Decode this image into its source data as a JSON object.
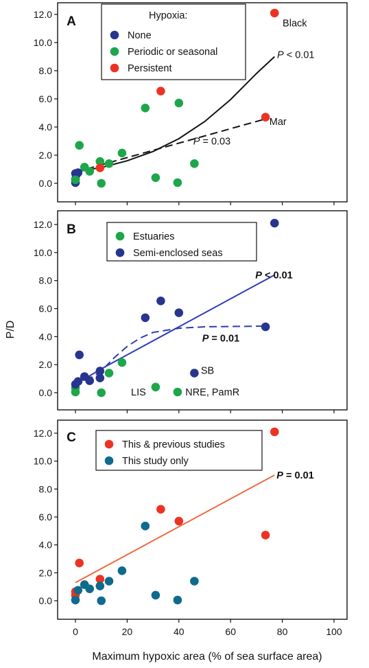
{
  "xlabel": "Maximum hypoxic area (% of sea surface area)",
  "ylabel": "P/D",
  "colors": {
    "blue": "#27358f",
    "green": "#1ea64a",
    "red": "#ec3323",
    "teal": "#0e6b8c",
    "orange": "#f06a43",
    "line_black": "#111111"
  },
  "chart_data": [
    {
      "type": "scatter",
      "panel": "A",
      "xlim": [
        0,
        100
      ],
      "ylim": [
        0,
        12
      ],
      "x_ticks": [
        "0",
        "20",
        "40",
        "60",
        "80",
        "100"
      ],
      "y_ticks": [
        "0.0",
        "2.0",
        "4.0",
        "6.0",
        "8.0",
        "10.0",
        "12.0"
      ],
      "legend_title": "Hypoxia:",
      "series": [
        {
          "name": "None",
          "color": "#27358f",
          "points": [
            [
              0,
              0.05
            ],
            [
              0,
              0.3
            ],
            [
              0.3,
              0.6
            ],
            [
              1,
              0.75
            ],
            [
              0,
              0.7
            ]
          ]
        },
        {
          "name": "Periodic or seasonal",
          "color": "#1ea64a",
          "points": [
            [
              1.5,
              2.7
            ],
            [
              3.5,
              1.15
            ],
            [
              5.5,
              0.85
            ],
            [
              9.5,
              1.55
            ],
            [
              10,
              0.0
            ],
            [
              13,
              1.4
            ],
            [
              18,
              2.15
            ],
            [
              27,
              5.35
            ],
            [
              31,
              0.4
            ],
            [
              39.5,
              0.05
            ],
            [
              40,
              5.7
            ],
            [
              46,
              1.4
            ],
            [
              0,
              0.25
            ]
          ]
        },
        {
          "name": "Persistent",
          "color": "#ec3323",
          "points": [
            [
              33,
              6.55
            ],
            [
              77,
              12.1
            ],
            [
              73.5,
              4.7
            ],
            [
              9.5,
              1.1
            ]
          ]
        }
      ],
      "fits": [
        {
          "style": "solid",
          "points": [
            [
              0,
              0.82
            ],
            [
              10,
              1.12
            ],
            [
              20,
              1.6
            ],
            [
              30,
              2.26
            ],
            [
              40,
              3.17
            ],
            [
              50,
              4.39
            ],
            [
              60,
              5.95
            ],
            [
              70,
              7.8
            ],
            [
              77,
              9.0
            ]
          ]
        },
        {
          "style": "dashed",
          "points": [
            [
              0,
              0.8
            ],
            [
              74,
              4.6
            ]
          ]
        }
      ],
      "annotations": [
        {
          "text": "Black",
          "x": 78,
          "y": 11.4
        },
        {
          "text": "P < 0.01",
          "x": 78,
          "y": 9.15
        },
        {
          "text": "Mar",
          "x": 75,
          "y": 4.4
        },
        {
          "text": "P = 0.03",
          "x": 60,
          "y": 3.0
        }
      ]
    },
    {
      "type": "scatter",
      "panel": "B",
      "xlim": [
        0,
        100
      ],
      "ylim": [
        0,
        12
      ],
      "x_ticks": [
        "0",
        "20",
        "40",
        "60",
        "80",
        "100"
      ],
      "y_ticks": [
        "0.0",
        "2.0",
        "4.0",
        "6.0",
        "8.0",
        "10.0",
        "12.0"
      ],
      "series": [
        {
          "name": "Estuaries",
          "color": "#1ea64a",
          "points": [
            [
              0,
              0.05
            ],
            [
              0,
              0.35
            ],
            [
              10,
              0.0
            ],
            [
              13,
              1.4
            ],
            [
              18,
              2.15
            ],
            [
              31,
              0.4
            ],
            [
              39.5,
              0.05
            ]
          ]
        },
        {
          "name": "Semi-enclosed seas",
          "color": "#27358f",
          "points": [
            [
              0,
              0.6
            ],
            [
              1,
              0.8
            ],
            [
              1.5,
              2.7
            ],
            [
              3.5,
              1.15
            ],
            [
              5.5,
              0.85
            ],
            [
              9.5,
              1.05
            ],
            [
              9.5,
              1.55
            ],
            [
              27,
              5.35
            ],
            [
              33,
              6.55
            ],
            [
              40,
              5.7
            ],
            [
              46,
              1.4
            ],
            [
              73.5,
              4.7
            ],
            [
              77,
              12.1
            ]
          ]
        }
      ],
      "fits": [
        {
          "style": "solid",
          "points": [
            [
              0,
              0.6
            ],
            [
              10,
              1.7
            ],
            [
              77,
              8.4
            ]
          ]
        },
        {
          "style": "dashed",
          "points": [
            [
              0,
              0.5
            ],
            [
              5,
              0.95
            ],
            [
              10,
              1.55
            ],
            [
              15,
              2.5
            ],
            [
              20,
              3.3
            ],
            [
              25,
              3.9
            ],
            [
              30,
              4.3
            ],
            [
              40,
              4.6
            ],
            [
              50,
              4.7
            ],
            [
              74,
              4.75
            ]
          ]
        }
      ],
      "annotations": [
        {
          "text": "P < 0.01",
          "x": 77,
          "y": 8.4
        },
        {
          "text": "P = 0.01",
          "x": 49,
          "y": 3.9
        },
        {
          "text": "SB",
          "x": 48.5,
          "y": 1.6
        },
        {
          "text": "LIS",
          "x": 21.5,
          "y": 0.05
        },
        {
          "text": "NRE, PamR",
          "x": 42.5,
          "y": 0.05
        }
      ]
    },
    {
      "type": "scatter",
      "panel": "C",
      "xlim": [
        0,
        100
      ],
      "ylim": [
        0,
        12
      ],
      "x_ticks": [
        "0",
        "20",
        "40",
        "60",
        "80",
        "100"
      ],
      "y_ticks": [
        "0.0",
        "2.0",
        "4.0",
        "6.0",
        "8.0",
        "10.0",
        "12.0"
      ],
      "series": [
        {
          "name": "This & previous studies",
          "color": "#ec3323",
          "points": [
            [
              0,
              0.65
            ],
            [
              0,
              0.4
            ],
            [
              1.5,
              2.7
            ],
            [
              9.5,
              1.55
            ],
            [
              33,
              6.55
            ],
            [
              40,
              5.7
            ],
            [
              73.5,
              4.7
            ],
            [
              77,
              12.1
            ]
          ]
        },
        {
          "name": "This study only",
          "color": "#0e6b8c",
          "points": [
            [
              0,
              0.05
            ],
            [
              1,
              0.75
            ],
            [
              3.5,
              1.15
            ],
            [
              5.5,
              0.85
            ],
            [
              9.5,
              1.05
            ],
            [
              10,
              0.0
            ],
            [
              13,
              1.4
            ],
            [
              18,
              2.15
            ],
            [
              27,
              5.35
            ],
            [
              31,
              0.4
            ],
            [
              39.5,
              0.05
            ],
            [
              46,
              1.4
            ]
          ]
        }
      ],
      "fits": [
        {
          "style": "solid",
          "points": [
            [
              0,
              1.3
            ],
            [
              77,
              9.0
            ]
          ]
        }
      ],
      "annotations": [
        {
          "text": "P = 0.01",
          "x": 77,
          "y": 9.0
        }
      ]
    }
  ]
}
